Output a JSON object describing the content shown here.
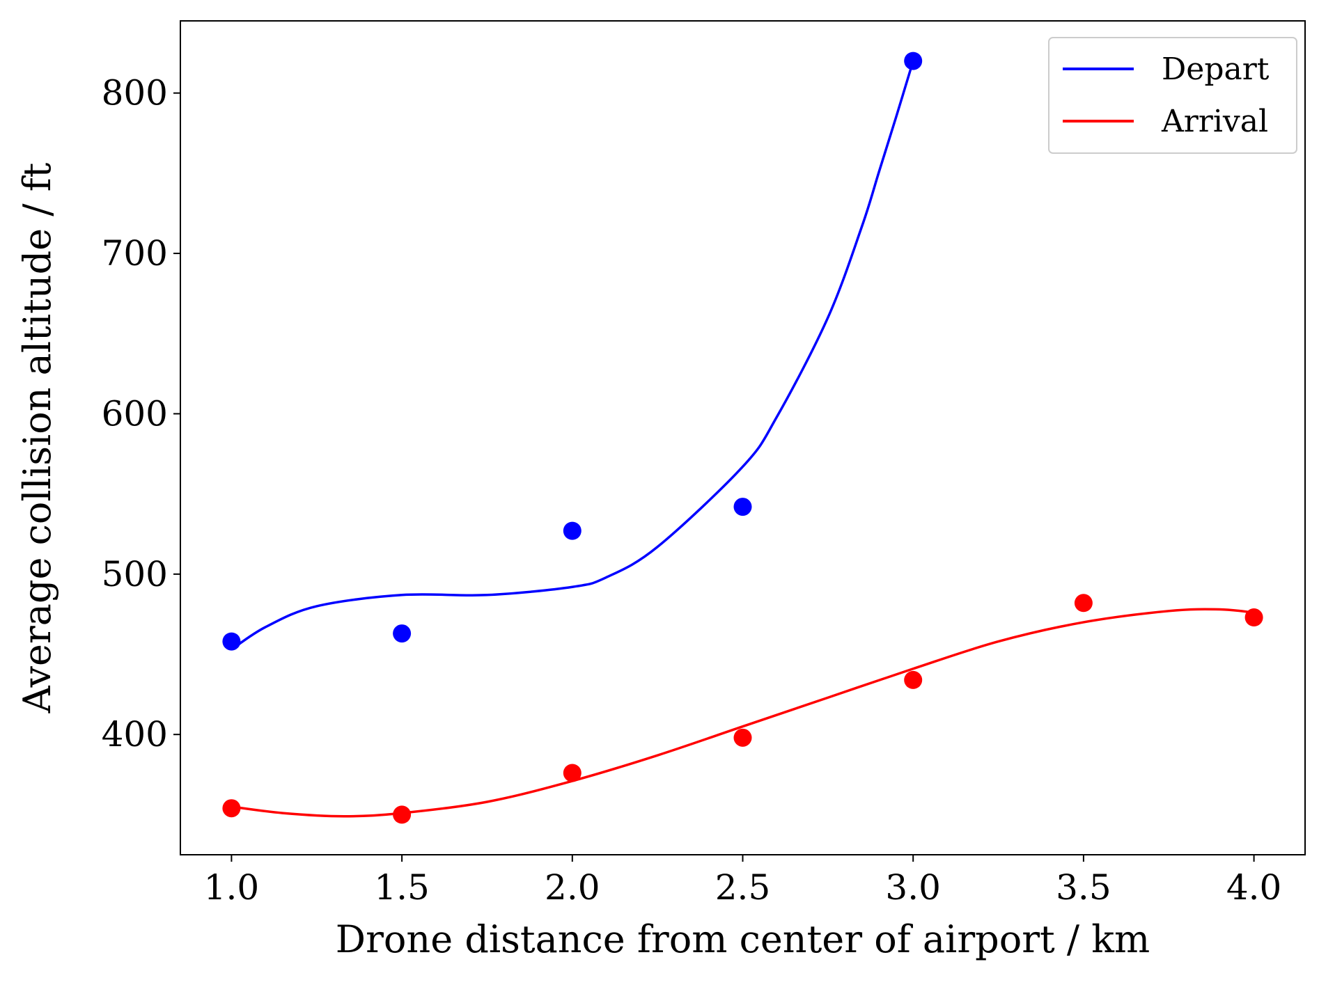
{
  "chart_data": {
    "type": "line",
    "title": "",
    "xlabel": "Drone distance from center of airport / km",
    "ylabel": "Average collision altitude / ft",
    "xlim": [
      0.85,
      4.15
    ],
    "ylim": [
      325,
      845
    ],
    "xticks": [
      1.0,
      1.5,
      2.0,
      2.5,
      3.0,
      3.5,
      4.0
    ],
    "xtick_labels": [
      "1.0",
      "1.5",
      "2.0",
      "2.5",
      "3.0",
      "3.5",
      "4.0"
    ],
    "yticks": [
      400,
      500,
      600,
      700,
      800
    ],
    "ytick_labels": [
      "400",
      "500",
      "600",
      "700",
      "800"
    ],
    "grid": false,
    "legend_position": "top-right",
    "series": [
      {
        "name": "Depart",
        "color": "#0000ff",
        "points": {
          "x": [
            1.0,
            1.5,
            2.0,
            2.5,
            3.0
          ],
          "y": [
            458,
            463,
            527,
            542,
            820
          ]
        },
        "fit_curve": {
          "x": [
            1.0,
            1.1,
            1.25,
            1.5,
            1.75,
            2.0,
            2.1,
            2.25,
            2.5,
            2.6,
            2.75,
            2.85,
            2.9,
            2.95,
            3.0
          ],
          "y": [
            453,
            467,
            480,
            487,
            487,
            492,
            498,
            517,
            567,
            598,
            660,
            717,
            751,
            785,
            820
          ]
        }
      },
      {
        "name": "Arrival",
        "color": "#ff0000",
        "points": {
          "x": [
            1.0,
            1.5,
            2.0,
            2.5,
            3.0,
            3.5,
            4.0
          ],
          "y": [
            354,
            350,
            376,
            398,
            434,
            482,
            473
          ]
        },
        "fit_curve": {
          "x": [
            1.0,
            1.15,
            1.33,
            1.5,
            1.75,
            2.0,
            2.25,
            2.5,
            2.75,
            3.0,
            3.25,
            3.5,
            3.75,
            3.9,
            4.0
          ],
          "y": [
            355,
            351,
            349,
            351,
            358,
            371,
            387,
            405,
            423,
            441,
            458,
            470,
            477,
            478,
            476
          ]
        }
      }
    ]
  }
}
